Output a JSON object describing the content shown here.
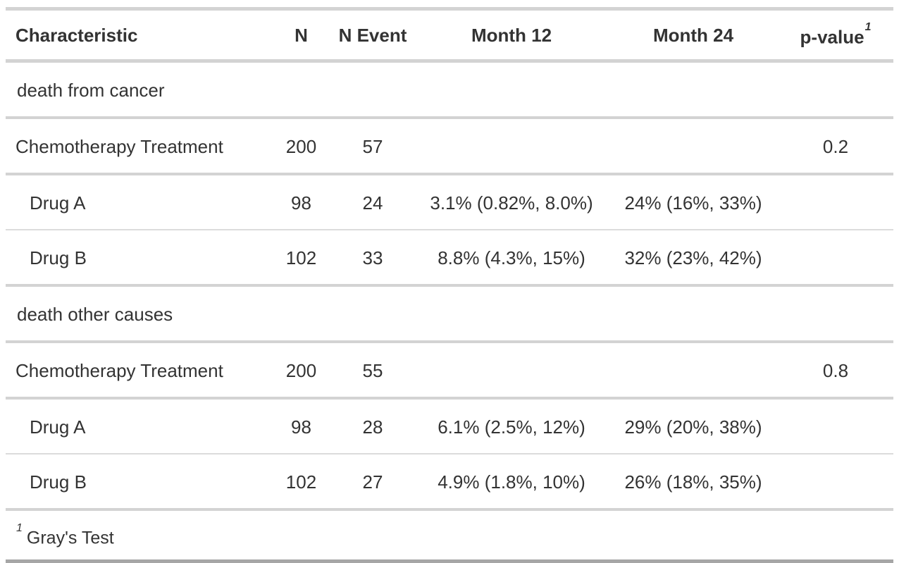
{
  "meta": {
    "colors": {
      "text": "#333333",
      "border_light": "#d3d3d3",
      "border_thin": "#dcdcdc",
      "border_bottom_dark": "#a6a6a6",
      "background": "#ffffff"
    }
  },
  "chart_data": {
    "type": "table",
    "columns": [
      {
        "label": "Characteristic"
      },
      {
        "label": "N"
      },
      {
        "label": "N Event"
      },
      {
        "label": "Month 12"
      },
      {
        "label": "Month 24"
      },
      {
        "label": "p-value",
        "sup": "1"
      }
    ],
    "rows": [
      {
        "type": "group",
        "label": "death from cancer",
        "n": "",
        "n_event": "",
        "month12": "",
        "month24": "",
        "p": ""
      },
      {
        "type": "level1",
        "label": "Chemotherapy Treatment",
        "n": "200",
        "n_event": "57",
        "month12": "",
        "month24": "",
        "p": "0.2"
      },
      {
        "type": "level2",
        "label": "Drug A",
        "n": "98",
        "n_event": "24",
        "month12": "3.1% (0.82%, 8.0%)",
        "month24": "24% (16%, 33%)",
        "p": ""
      },
      {
        "type": "level2",
        "label": "Drug B",
        "n": "102",
        "n_event": "33",
        "month12": "8.8% (4.3%, 15%)",
        "month24": "32% (23%, 42%)",
        "p": ""
      },
      {
        "type": "group",
        "label": "death other causes",
        "n": "",
        "n_event": "",
        "month12": "",
        "month24": "",
        "p": ""
      },
      {
        "type": "level1",
        "label": "Chemotherapy Treatment",
        "n": "200",
        "n_event": "55",
        "month12": "",
        "month24": "",
        "p": "0.8"
      },
      {
        "type": "level2",
        "label": "Drug A",
        "n": "98",
        "n_event": "28",
        "month12": "6.1% (2.5%, 12%)",
        "month24": "29% (20%, 38%)",
        "p": ""
      },
      {
        "type": "level2",
        "label": "Drug B",
        "n": "102",
        "n_event": "27",
        "month12": "4.9% (1.8%, 10%)",
        "month24": "26% (18%, 35%)",
        "p": ""
      }
    ],
    "footnote": {
      "marker": "1",
      "text": "Gray's Test"
    }
  }
}
